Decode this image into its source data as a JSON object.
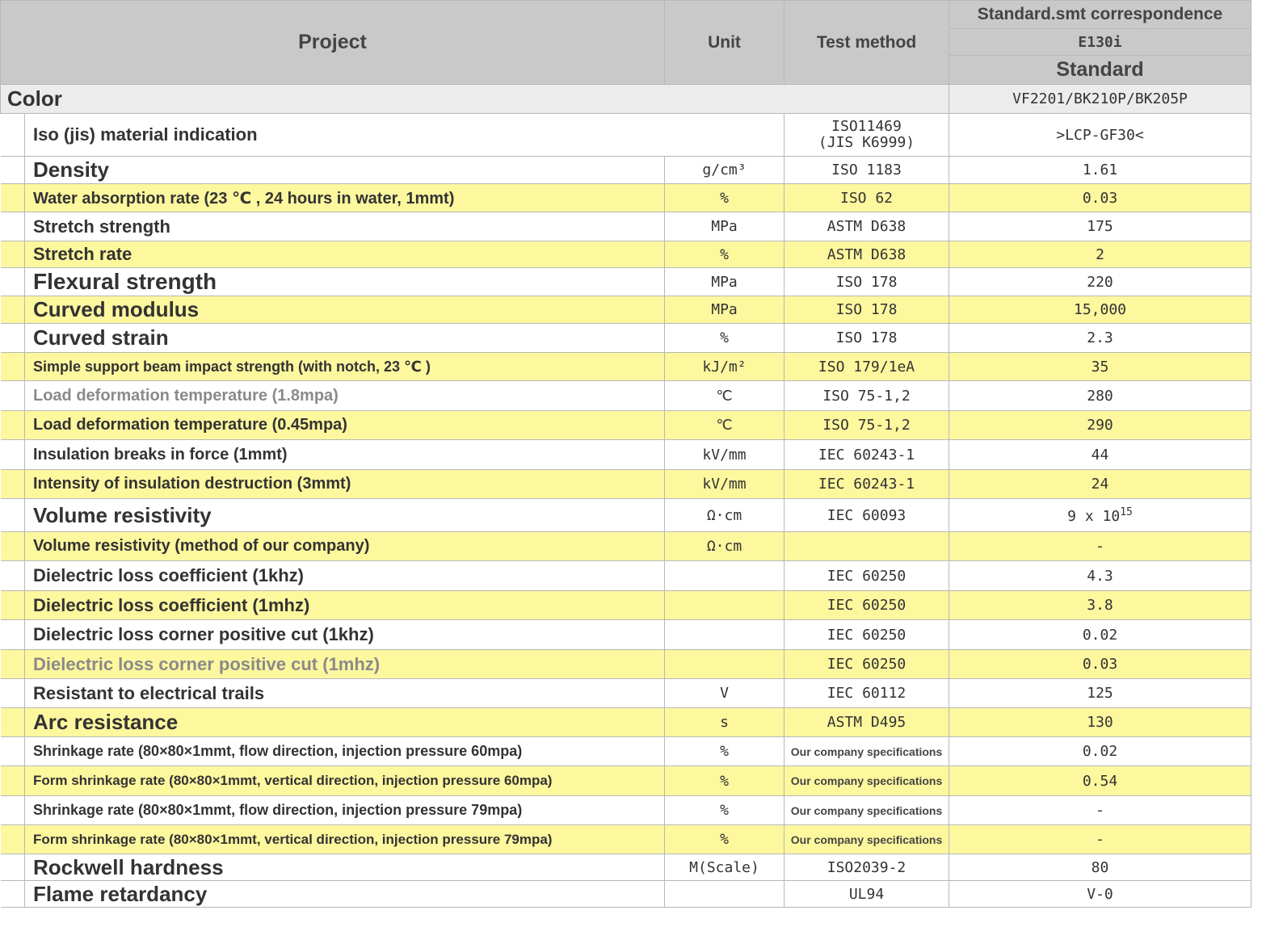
{
  "header": {
    "project": "Project",
    "unit": "Unit",
    "test_method": "Test method",
    "correspondence": "Standard.smt correspondence",
    "grade": "E130i",
    "standard": "Standard"
  },
  "color_row": {
    "label": "Color",
    "value": "VF2201/BK210P/BK205P"
  },
  "material_row": {
    "label": "Iso (jis) material indication",
    "method_line1": "ISO11469",
    "method_line2": "(JIS K6999)",
    "value": ">LCP-GF30<"
  },
  "rows": [
    {
      "name": "Density",
      "unit": "g/cm³",
      "method": "ISO 1183",
      "value": "1.61"
    },
    {
      "name": "Water absorption rate (23 ℃ , 24 hours in water, 1mmt)",
      "unit": "%",
      "method": "ISO 62",
      "value": "0.03"
    },
    {
      "name": "Stretch strength",
      "unit": "MPa",
      "method": "ASTM D638",
      "value": "175"
    },
    {
      "name": "Stretch rate",
      "unit": "%",
      "method": "ASTM D638",
      "value": "2"
    },
    {
      "name": "Flexural strength",
      "unit": "MPa",
      "method": "ISO 178",
      "value": "220"
    },
    {
      "name": "Curved modulus",
      "unit": "MPa",
      "method": "ISO 178",
      "value": "15,000"
    },
    {
      "name": "Curved strain",
      "unit": "%",
      "method": "ISO 178",
      "value": "2.3"
    },
    {
      "name": "Simple support beam impact strength (with notch, 23 ℃ )",
      "unit": "kJ/m²",
      "method": "ISO 179/1eA",
      "value": "35"
    },
    {
      "name": "Load deformation temperature (1.8mpa)",
      "unit": "℃",
      "method": "ISO 75-1,2",
      "value": "280"
    },
    {
      "name": "Load deformation temperature (0.45mpa)",
      "unit": "℃",
      "method": "ISO 75-1,2",
      "value": "290"
    },
    {
      "name": "Insulation breaks in force (1mmt)",
      "unit": "kV/mm",
      "method": "IEC 60243-1",
      "value": "44"
    },
    {
      "name": "Intensity of insulation destruction (3mmt)",
      "unit": "kV/mm",
      "method": "IEC 60243-1",
      "value": "24"
    },
    {
      "name": "Volume resistivity",
      "unit": "Ω·cm",
      "method": "IEC 60093",
      "value": "9 x 10",
      "value_sup": "15"
    },
    {
      "name": "Volume resistivity (method of our company)",
      "unit": "Ω·cm",
      "method": "",
      "value": "-"
    },
    {
      "name": "Dielectric loss coefficient (1khz)",
      "unit": "",
      "method": "IEC 60250",
      "value": "4.3"
    },
    {
      "name": "Dielectric loss coefficient (1mhz)",
      "unit": "",
      "method": "IEC 60250",
      "value": "3.8"
    },
    {
      "name": "Dielectric loss corner positive cut (1khz)",
      "unit": "",
      "method": "IEC 60250",
      "value": "0.02"
    },
    {
      "name": "Dielectric loss corner positive cut (1mhz)",
      "unit": "",
      "method": "IEC 60250",
      "value": "0.03"
    },
    {
      "name": "Resistant to electrical trails",
      "unit": "V",
      "method": "IEC 60112",
      "value": "125"
    },
    {
      "name": "Arc resistance",
      "unit": "s",
      "method": "ASTM D495",
      "value": "130"
    },
    {
      "name": "Shrinkage rate (80×80×1mmt, flow direction, injection pressure 60mpa)",
      "unit": "%",
      "method": "Our company specifications",
      "value": "0.02"
    },
    {
      "name": "Form shrinkage rate (80×80×1mmt, vertical direction, injection pressure 60mpa)",
      "unit": "%",
      "method": "Our company specifications",
      "value": "0.54"
    },
    {
      "name": "Shrinkage rate (80×80×1mmt, flow direction, injection pressure 79mpa)",
      "unit": "%",
      "method": "Our company specifications",
      "value": "-"
    },
    {
      "name": "Form shrinkage rate (80×80×1mmt, vertical direction, injection pressure 79mpa)",
      "unit": "%",
      "method": "Our company specifications",
      "value": "-"
    },
    {
      "name": "Rockwell hardness",
      "unit": "M(Scale)",
      "method": "ISO2039-2",
      "value": "80"
    },
    {
      "name": "Flame retardancy",
      "unit": "",
      "method": "UL94",
      "value": "V-0"
    }
  ]
}
